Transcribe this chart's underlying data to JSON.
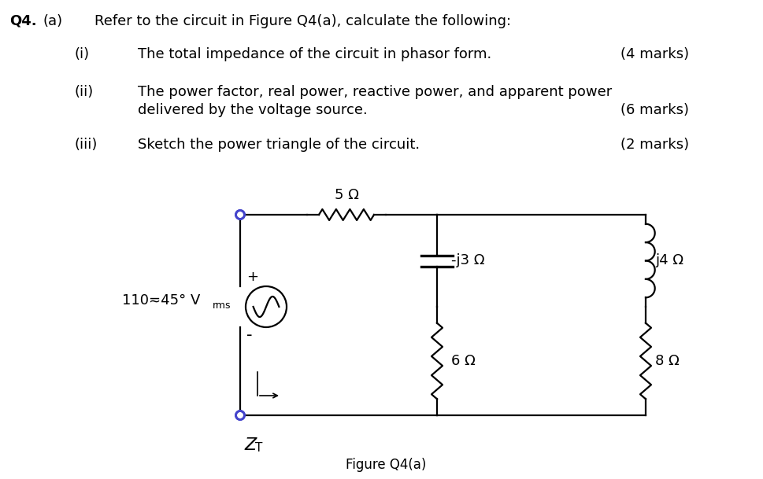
{
  "bg_color": "#ffffff",
  "text_color": "#000000",
  "blue_color": "#4444cc",
  "circuit_color": "#000000",
  "title_q4": "Q4.",
  "title_a": "(a)",
  "main_text": "Refer to the circuit in Figure Q4(a), calculate the following:",
  "i_label": "(i)",
  "i_text": "The total impedance of the circuit in phasor form.",
  "i_marks": "(4 marks)",
  "ii_label": "(ii)",
  "ii_text1": "The power factor, real power, reactive power, and apparent power",
  "ii_text2": "delivered by the voltage source.",
  "ii_marks": "(6 marks)",
  "iii_label": "(iii)",
  "iii_text": "Sketch the power triangle of the circuit.",
  "iii_marks": "(2 marks)",
  "source_label": "110≂45° V",
  "source_label_sub": "rms",
  "r5_label": "5 Ω",
  "cap_label": "-j3 Ω",
  "r6_label": "6 Ω",
  "ind_label": "j4 Ω",
  "r8_label": "8 Ω",
  "zt_label_main": "Z",
  "zt_label_sub": "T",
  "fig_label": "Figure Q4(a)"
}
